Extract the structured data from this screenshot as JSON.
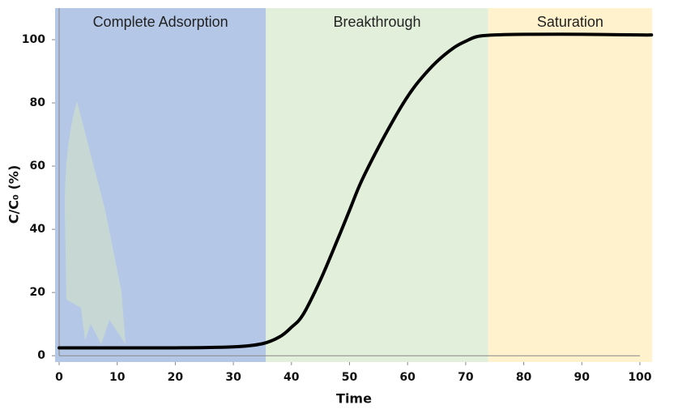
{
  "chart_data": {
    "type": "line",
    "xlabel": "Time",
    "ylabel": "C/C₀ (%)",
    "regions": [
      {
        "label": "Complete Adsorption",
        "start": -0.7,
        "end": 35.6,
        "color": "#b4c7e7"
      },
      {
        "label": "Breakthrough",
        "start": 35.6,
        "end": 73.9,
        "color": "#e2efda"
      },
      {
        "label": "Saturation",
        "start": 73.9,
        "end": 102.1,
        "color": "#fff2cc"
      }
    ],
    "x": [
      0,
      10,
      20,
      30,
      35,
      38,
      40,
      42,
      45,
      48,
      50,
      52,
      55,
      58,
      60,
      62,
      65,
      68,
      70,
      72,
      75,
      80,
      90,
      100,
      102
    ],
    "series": [
      {
        "color": "#000000",
        "values": [
          2.5,
          2.5,
          2.5,
          2.8,
          3.8,
          6,
          9,
          13,
          24,
          37,
          46,
          55,
          66,
          76,
          82,
          87,
          93,
          97.5,
          99.5,
          101,
          101.5,
          101.7,
          101.7,
          101.5,
          101.5
        ]
      }
    ],
    "xlim": [
      -0.7,
      102.1
    ],
    "ylim": [
      -2,
      110
    ],
    "xticks": [
      0,
      10,
      20,
      30,
      40,
      50,
      60,
      70,
      80,
      90,
      100
    ],
    "yticks": [
      0,
      20,
      40,
      60,
      80,
      100
    ]
  }
}
